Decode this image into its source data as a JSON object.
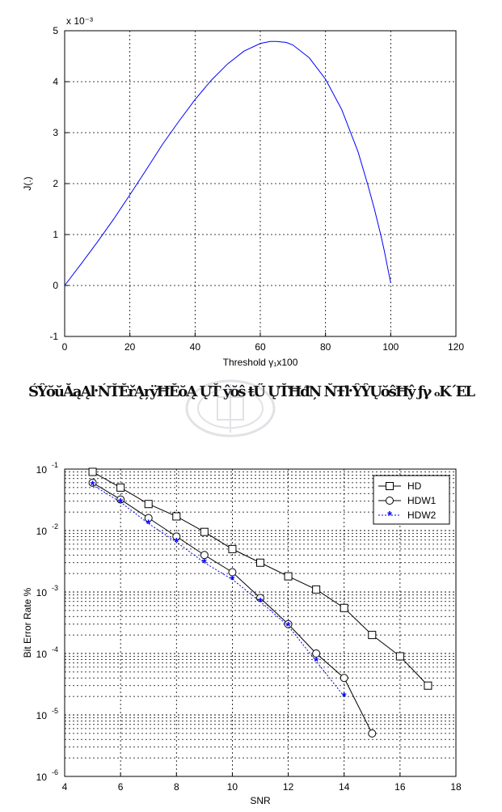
{
  "caption": "ŚŶŏŭĂąĄŀ ŃŤĚřĄŗÿĦĔŏĄ ŲŤ ŷŏŝ ŧŰ ŲŤĦđŅ ŇŦŀ ŶŶŲŏŝĦŷ ƒγ ₒKˊEL",
  "chart_data": [
    {
      "type": "line",
      "xlabel": "Threshold γ₁x100",
      "ylabel": "J(.)",
      "y_exponent_label": "x 10⁻³",
      "xlim": [
        0,
        120
      ],
      "ylim": [
        -1,
        5
      ],
      "x_ticks": [
        "0",
        "20",
        "40",
        "60",
        "80",
        "100",
        "120"
      ],
      "y_ticks": [
        "-1",
        "0",
        "1",
        "2",
        "3",
        "4",
        "5"
      ],
      "grid": true,
      "series_color": "#0000ff",
      "x": [
        0,
        5,
        10,
        15,
        20,
        25,
        30,
        35,
        40,
        45,
        50,
        55,
        60,
        63,
        65,
        68,
        70,
        75,
        80,
        85,
        90,
        93,
        95,
        97,
        98,
        99,
        100
      ],
      "y": [
        0,
        0.42,
        0.85,
        1.3,
        1.78,
        2.27,
        2.77,
        3.22,
        3.65,
        4.03,
        4.35,
        4.6,
        4.75,
        4.79,
        4.79,
        4.77,
        4.72,
        4.47,
        4.05,
        3.45,
        2.62,
        1.97,
        1.5,
        0.98,
        0.69,
        0.37,
        0.05
      ]
    },
    {
      "type": "line",
      "xlabel": "SNR",
      "ylabel": "Bit Error Rate %",
      "xlim": [
        4,
        18
      ],
      "ylim": [
        1e-06,
        0.1
      ],
      "y_scale": "log",
      "x_ticks": [
        "4",
        "6",
        "8",
        "10",
        "12",
        "14",
        "16",
        "18"
      ],
      "y_ticks": [
        {
          "base": "10",
          "exp": "-1"
        },
        {
          "base": "10",
          "exp": "-2"
        },
        {
          "base": "10",
          "exp": "-3"
        },
        {
          "base": "10",
          "exp": "-4"
        },
        {
          "base": "10",
          "exp": "-5"
        },
        {
          "base": "10",
          "exp": "-6"
        }
      ],
      "grid": true,
      "legend_position": "top-right",
      "series": [
        {
          "name": "HD",
          "marker": "square",
          "color": "#000000",
          "dash": "solid",
          "x": [
            5,
            6,
            7,
            8,
            9,
            10,
            11,
            12,
            13,
            14,
            15,
            16,
            17
          ],
          "y": [
            0.09,
            0.05,
            0.027,
            0.017,
            0.0095,
            0.005,
            0.003,
            0.0018,
            0.0011,
            0.00055,
            0.0002,
            9e-05,
            3e-05
          ]
        },
        {
          "name": "HDW1",
          "marker": "circle",
          "color": "#000000",
          "dash": "solid",
          "x": [
            5,
            6,
            7,
            8,
            9,
            10,
            11,
            12,
            13,
            14,
            15
          ],
          "y": [
            0.06,
            0.032,
            0.016,
            0.008,
            0.004,
            0.0021,
            0.0008,
            0.0003,
            0.0001,
            4e-05,
            5e-06
          ]
        },
        {
          "name": "HDW2",
          "marker": "star",
          "color": "#0000ff",
          "dash": "dotted",
          "x": [
            5,
            6,
            7,
            8,
            9,
            10,
            11,
            12,
            13,
            14
          ],
          "y": [
            0.055,
            0.029,
            0.013,
            0.0065,
            0.003,
            0.0016,
            0.0007,
            0.00028,
            7.5e-05,
            2e-05
          ]
        }
      ]
    }
  ]
}
